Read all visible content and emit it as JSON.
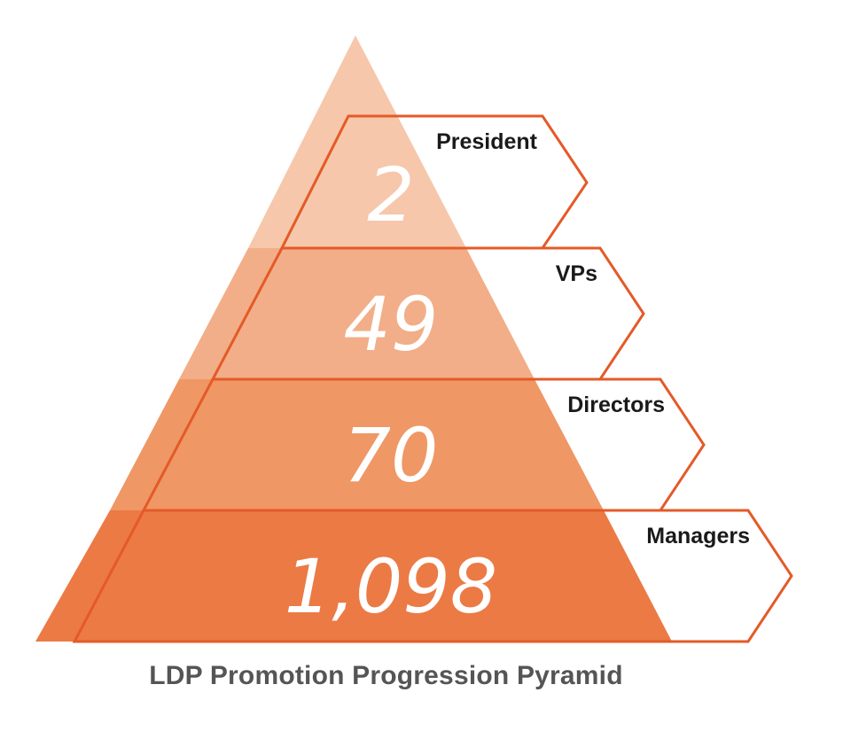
{
  "title": "LDP Promotion Progression Pyramid",
  "colors": {
    "outline": "#e45a27",
    "tiers": [
      "#f6c7ab",
      "#f2ae88",
      "#ef9765",
      "#ec7a45"
    ],
    "value_text": "#ffffff",
    "label_text": "#1a1a1a",
    "caption_text": "#555555"
  },
  "tiers": [
    {
      "label": "President",
      "value": "2"
    },
    {
      "label": "VPs",
      "value": "49"
    },
    {
      "label": "Directors",
      "value": "70"
    },
    {
      "label": "Managers",
      "value": "1,098"
    }
  ]
}
